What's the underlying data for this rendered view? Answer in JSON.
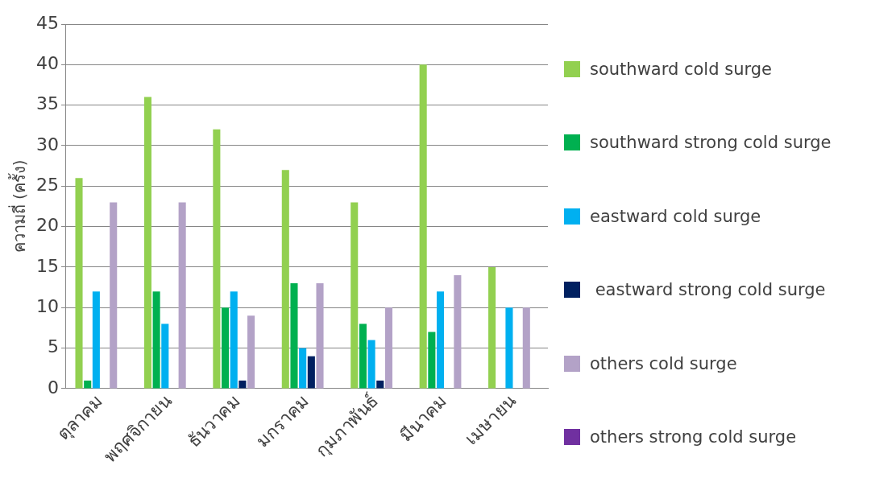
{
  "chart_data": {
    "type": "bar",
    "ylabel": "ความถี่ (ครั้ง)",
    "categories": [
      "ตุลาคม",
      "พฤศจิกายน",
      "ธันวาคม",
      "มกราคม",
      "กุมภาพันธ์",
      "มีนาคม",
      "เมษายน"
    ],
    "series": [
      {
        "name": "southward cold surge",
        "color": "#92d050",
        "values": [
          26,
          36,
          32,
          27,
          23,
          40,
          15
        ]
      },
      {
        "name": "southward strong cold surge",
        "color": "#00b050",
        "values": [
          1,
          12,
          10,
          13,
          8,
          7,
          0
        ]
      },
      {
        "name": "eastward cold surge",
        "color": "#00b0f0",
        "values": [
          12,
          8,
          12,
          5,
          6,
          12,
          10
        ]
      },
      {
        "name": " eastward strong cold surge",
        "color": "#002060",
        "values": [
          0,
          0,
          1,
          4,
          1,
          0,
          0
        ]
      },
      {
        "name": "others cold surge",
        "color": "#b3a2c7",
        "values": [
          23,
          23,
          9,
          13,
          10,
          14,
          10
        ]
      },
      {
        "name": "others strong cold surge",
        "color": "#7030a0",
        "values": [
          0,
          0,
          0,
          0,
          0,
          0,
          0
        ]
      }
    ],
    "ylim": [
      0,
      45
    ],
    "yticks": [
      0,
      5,
      10,
      15,
      20,
      25,
      30,
      35,
      40,
      45
    ],
    "grid": "y",
    "legend": "right"
  }
}
